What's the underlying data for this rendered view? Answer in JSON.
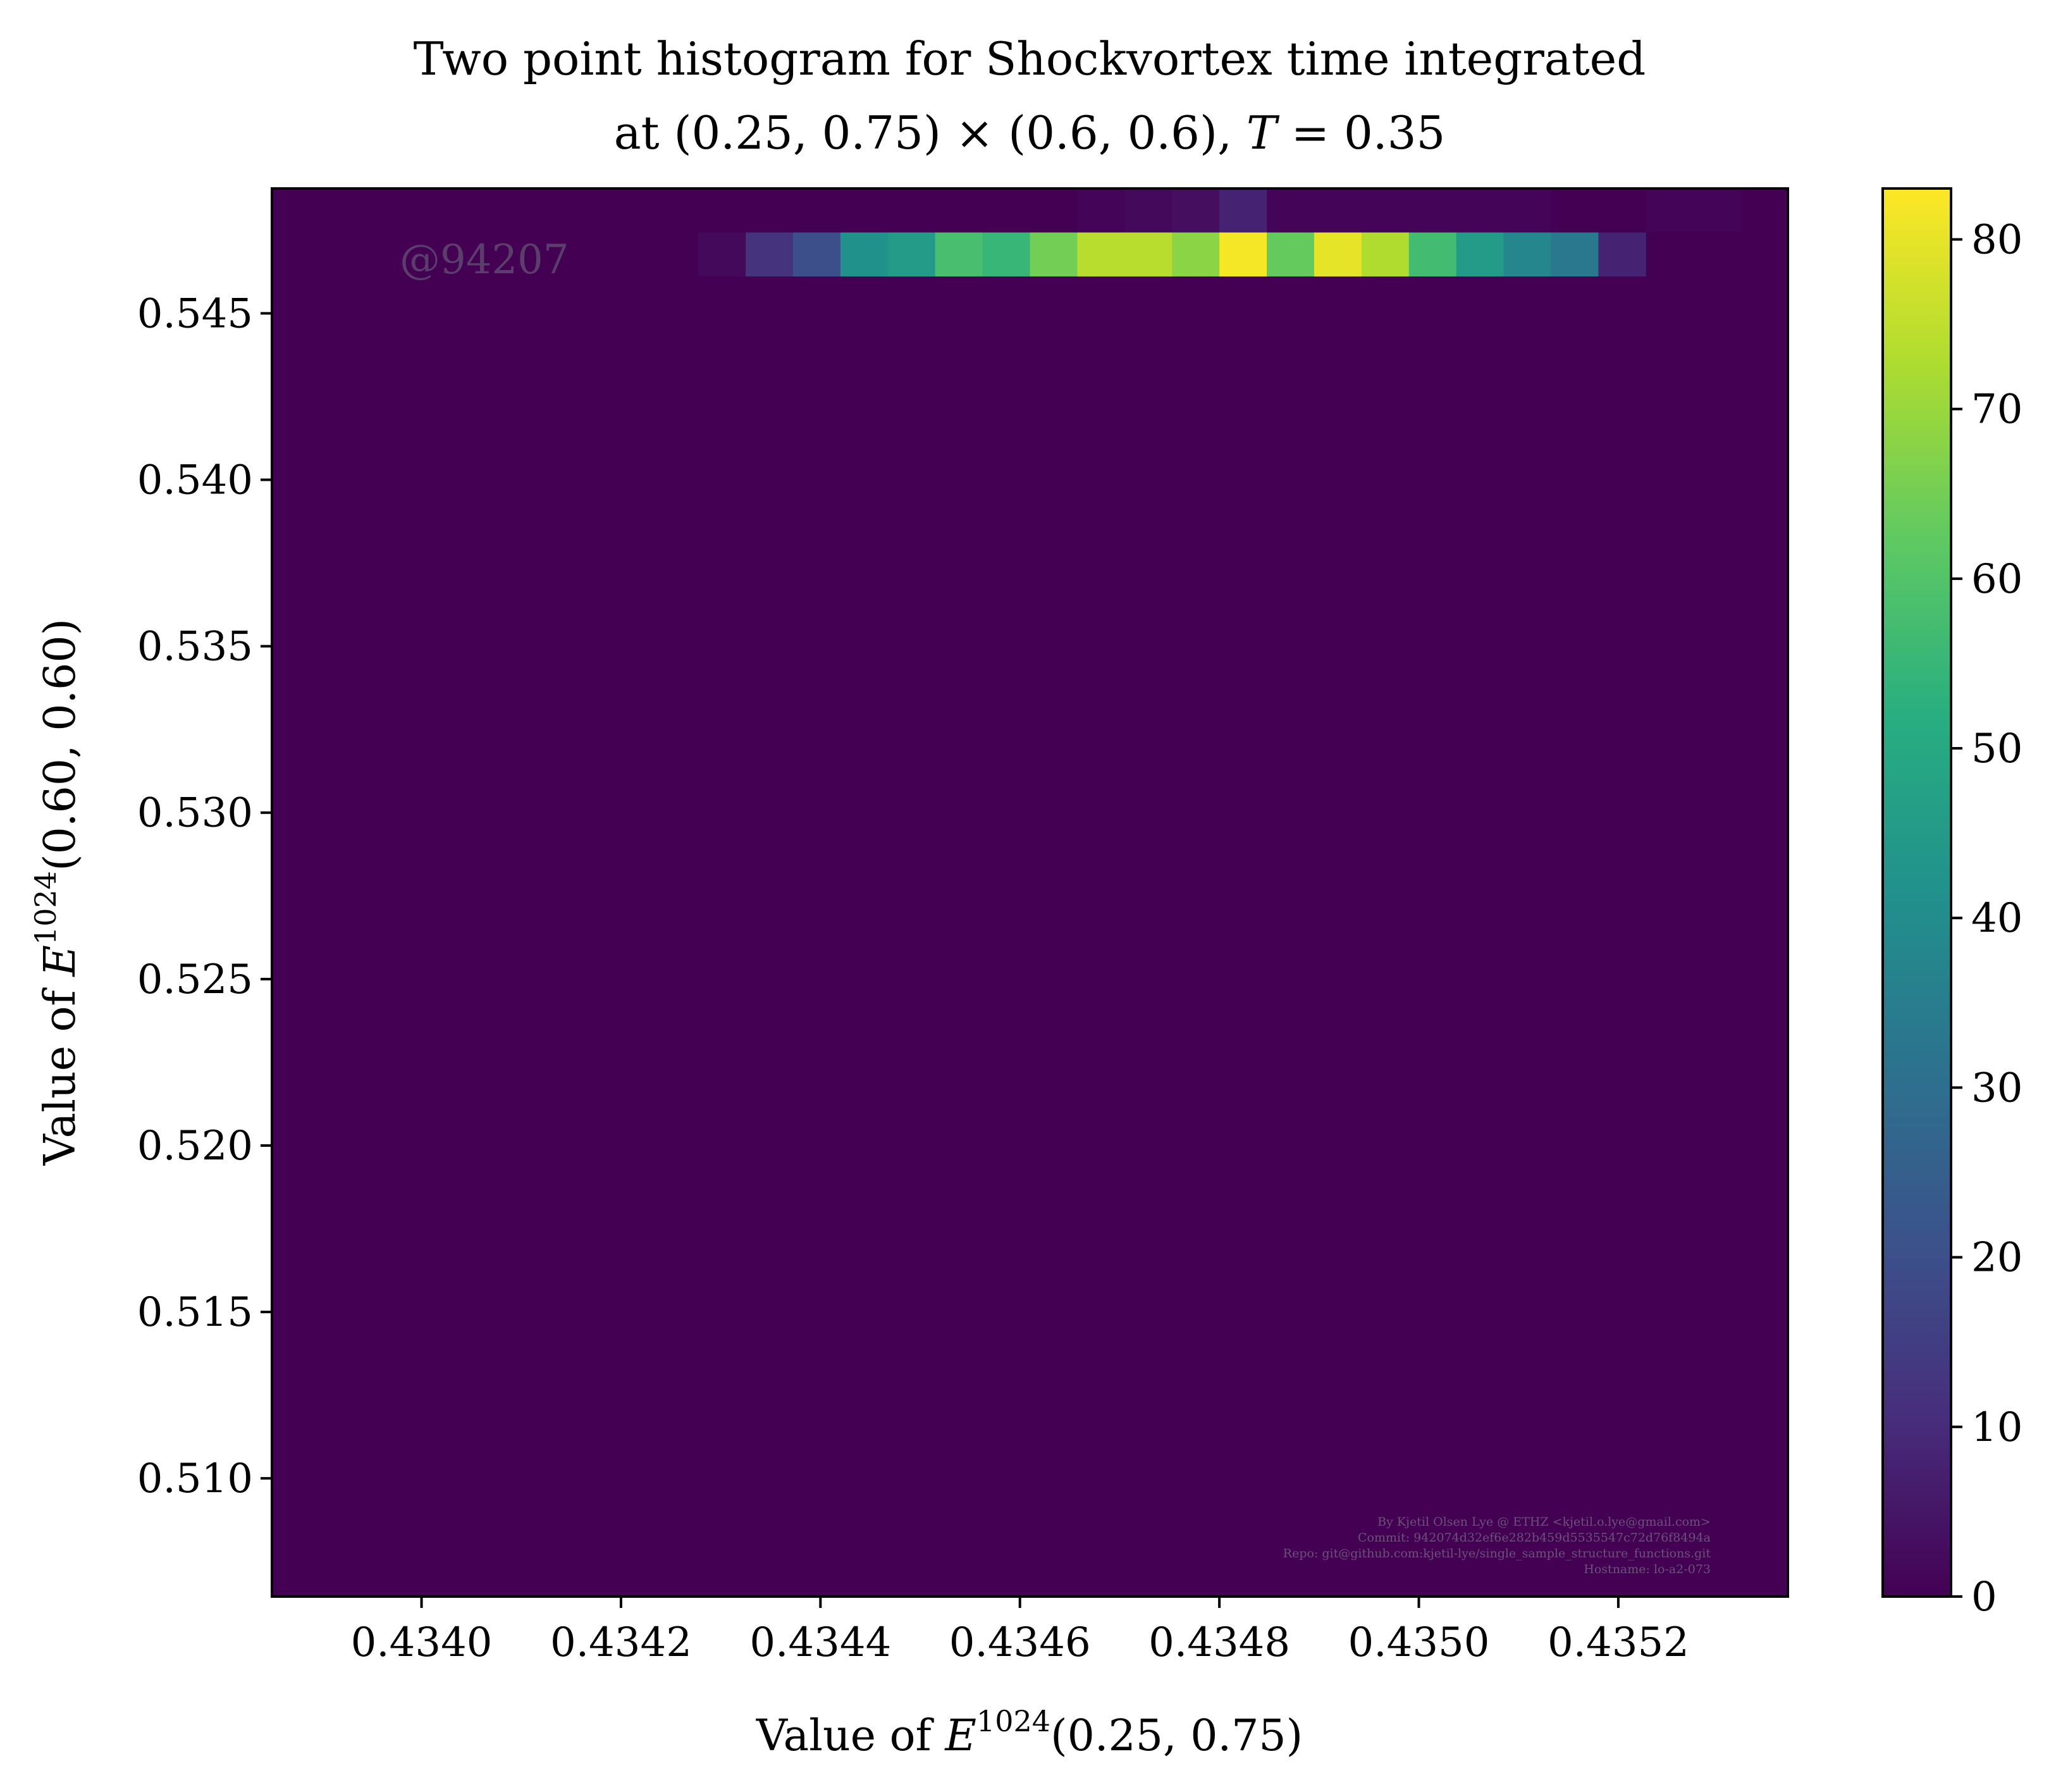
{
  "title_line1": "Two point histogram for Shockvortex time integrated",
  "title_line2_parts": {
    "at": "at",
    "loc": "(0.25, 0.75) × (0.6, 0.6),",
    "tvar": "T",
    "tval": "= 0.35"
  },
  "watermark": "@94207",
  "credits": [
    "By Kjetil Olsen Lye @ ETHZ <kjetil.o.lye@gmail.com>",
    "Commit: 942074d32ef6e282b459d5535547c72d76f8494a",
    "Repo: git@github.com:kjetil-lye/single_sample_structure_functions.git",
    "Hostname: lo-a2-073"
  ],
  "xlabel": {
    "prefix": "Value of",
    "sym": "E",
    "sup": "1024",
    "arg": "(0.25, 0.75)"
  },
  "ylabel": {
    "prefix": "Value of",
    "sym": "E",
    "sup": "1024",
    "arg": "(0.60, 0.60)"
  },
  "chart_data": {
    "type": "heatmap",
    "colormap": "viridis",
    "xlim": [
      0.43385,
      0.43537
    ],
    "ylim": [
      0.50645,
      0.54875
    ],
    "xticks": [
      0.434,
      0.4342,
      0.4344,
      0.4346,
      0.4348,
      0.435,
      0.4352
    ],
    "xtick_labels": [
      "0.4340",
      "0.4342",
      "0.4344",
      "0.4346",
      "0.4348",
      "0.4350",
      "0.4352"
    ],
    "yticks": [
      0.51,
      0.515,
      0.52,
      0.525,
      0.53,
      0.535,
      0.54,
      0.545
    ],
    "ytick_labels": [
      "0.510",
      "0.515",
      "0.520",
      "0.525",
      "0.530",
      "0.535",
      "0.540",
      "0.545"
    ],
    "colorbar": {
      "vmin": 0,
      "vmax": 83,
      "ticks": [
        0,
        10,
        20,
        30,
        40,
        50,
        60,
        70,
        80
      ],
      "tick_labels": [
        "0",
        "10",
        "20",
        "30",
        "40",
        "50",
        "60",
        "70",
        "80"
      ]
    },
    "bins": {
      "x_start": 0.43385,
      "x_width": 4.75e-05,
      "y_start": 0.50645,
      "y_height": 0.0013219,
      "rows": [
        {
          "y_index": 30,
          "start_x_index": 9,
          "values": [
            2,
            12,
            20,
            42,
            45,
            58,
            55,
            65,
            74,
            74,
            68,
            82,
            63,
            80,
            73,
            57,
            45,
            38,
            33,
            8
          ]
        },
        {
          "y_index": 31,
          "start_x_index": 17,
          "values": [
            1,
            2,
            3,
            8,
            1,
            1,
            1,
            1,
            1,
            1,
            0,
            0,
            1,
            1
          ]
        }
      ]
    }
  }
}
